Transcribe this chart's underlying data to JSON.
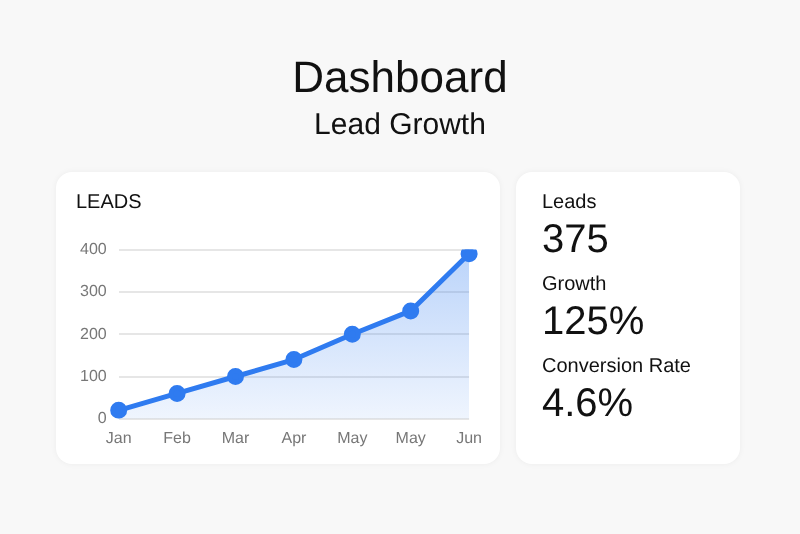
{
  "chart_data": [
    {
      "type": "area",
      "title": "Dashboard",
      "subtitle": "Lead Growth",
      "ylabel": "LEADS",
      "categories": [
        "Jan",
        "Feb",
        "Mar",
        "Apr",
        "May",
        "May",
        "Jun"
      ],
      "series": [
        {
          "color": "#2f7bf0",
          "values": [
            20,
            60,
            100,
            140,
            200,
            255,
            390
          ]
        }
      ],
      "ylim": [
        0,
        400
      ],
      "yticks": [
        0,
        100,
        200,
        300,
        400
      ],
      "grid": "y",
      "marker": "circle",
      "legend": false
    },
    {
      "type": "other",
      "annotations": [
        "Leads",
        "375",
        "Growth",
        "125%",
        "Conversion Rate",
        "4.6%"
      ]
    }
  ]
}
